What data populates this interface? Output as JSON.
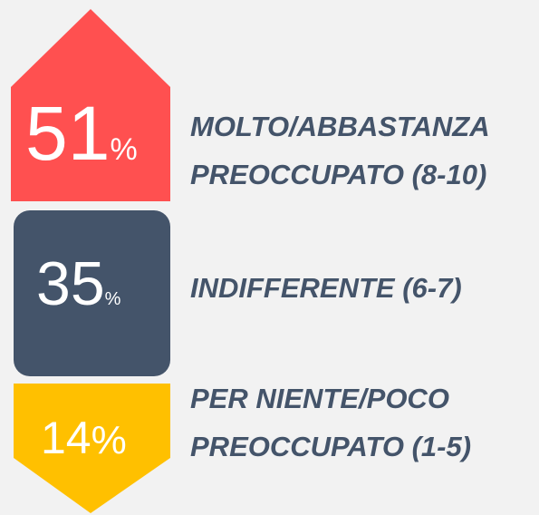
{
  "chart_data": {
    "type": "infographic",
    "categories": [
      [
        "MOLTO/ABBASTANZA",
        "PREOCCUPATO (8-10)"
      ],
      [
        "INDIFFERENTE (6-7)"
      ],
      [
        "PER NIENTE/POCO",
        "PREOCCUPATO (1-5)"
      ]
    ],
    "values": [
      51,
      35,
      14
    ],
    "unit": "%",
    "colors": [
      "#ff5050",
      "#44546a",
      "#ffc000"
    ],
    "label_color": "#44546a"
  }
}
